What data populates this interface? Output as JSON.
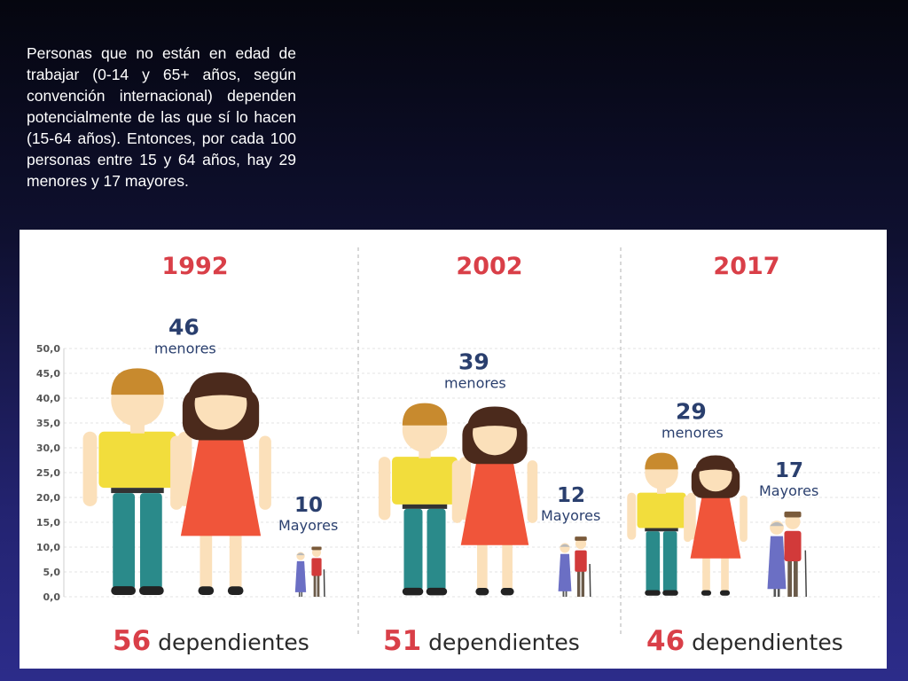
{
  "intro_text": "Personas que no están en edad de trabajar (0-14 y 65+ años, según convención internacional) dependen potencialmente de las que sí lo hacen (15-64 años). Entonces, por cada 100 personas entre 15 y 64 años, hay 29 menores y 17 mayores.",
  "colors": {
    "year": "#d93f48",
    "count": "#2a3f6e",
    "dependents_number": "#d93f48",
    "dependents_word": "#2a2a2a",
    "axis_text": "#555555",
    "shirt": "#f2dd3c",
    "pants": "#2a8a8a",
    "dress": "#f0553a",
    "hair_boy": "#c88a2e",
    "hair_girl": "#4b2a1c",
    "skin": "#fbe0ba"
  },
  "chart_data": {
    "type": "bar",
    "ylim": [
      0,
      50
    ],
    "yticks": [
      "50,0",
      "45,0",
      "40,0",
      "35,0",
      "30,0",
      "25,0",
      "20,0",
      "15,0",
      "10,0",
      "5,0",
      "0,0"
    ],
    "groups": [
      {
        "year": "1992",
        "menores": 46,
        "mayores": 10,
        "menores_label": "menores",
        "mayores_label": "Mayores",
        "dependientes": 56,
        "dependientes_label": "dependientes"
      },
      {
        "year": "2002",
        "menores": 39,
        "mayores": 12,
        "menores_label": "menores",
        "mayores_label": "Mayores",
        "dependientes": 51,
        "dependientes_label": "dependientes"
      },
      {
        "year": "2017",
        "menores": 29,
        "mayores": 17,
        "menores_label": "menores",
        "mayores_label": "Mayores",
        "dependientes": 46,
        "dependientes_label": "dependientes"
      }
    ]
  }
}
